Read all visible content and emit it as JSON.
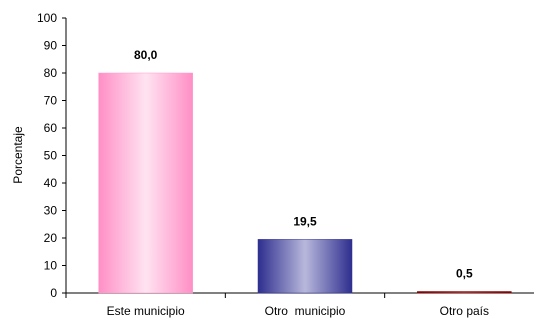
{
  "chart_data": {
    "type": "bar",
    "title": "",
    "xlabel": "",
    "ylabel": "Porcentaje",
    "ylim": [
      0,
      100
    ],
    "yticks": [
      0,
      10,
      20,
      30,
      40,
      50,
      60,
      70,
      80,
      90,
      100
    ],
    "grid": false,
    "legend": "none",
    "categories": [
      "Este municipio",
      "Otro  municipio",
      "Otro país"
    ],
    "values": [
      80.0,
      19.5,
      0.5
    ],
    "data_labels": [
      "80,0",
      "19,5",
      "0,5"
    ],
    "colors": [
      "#ff99cc",
      "#333399",
      "#800000"
    ]
  }
}
